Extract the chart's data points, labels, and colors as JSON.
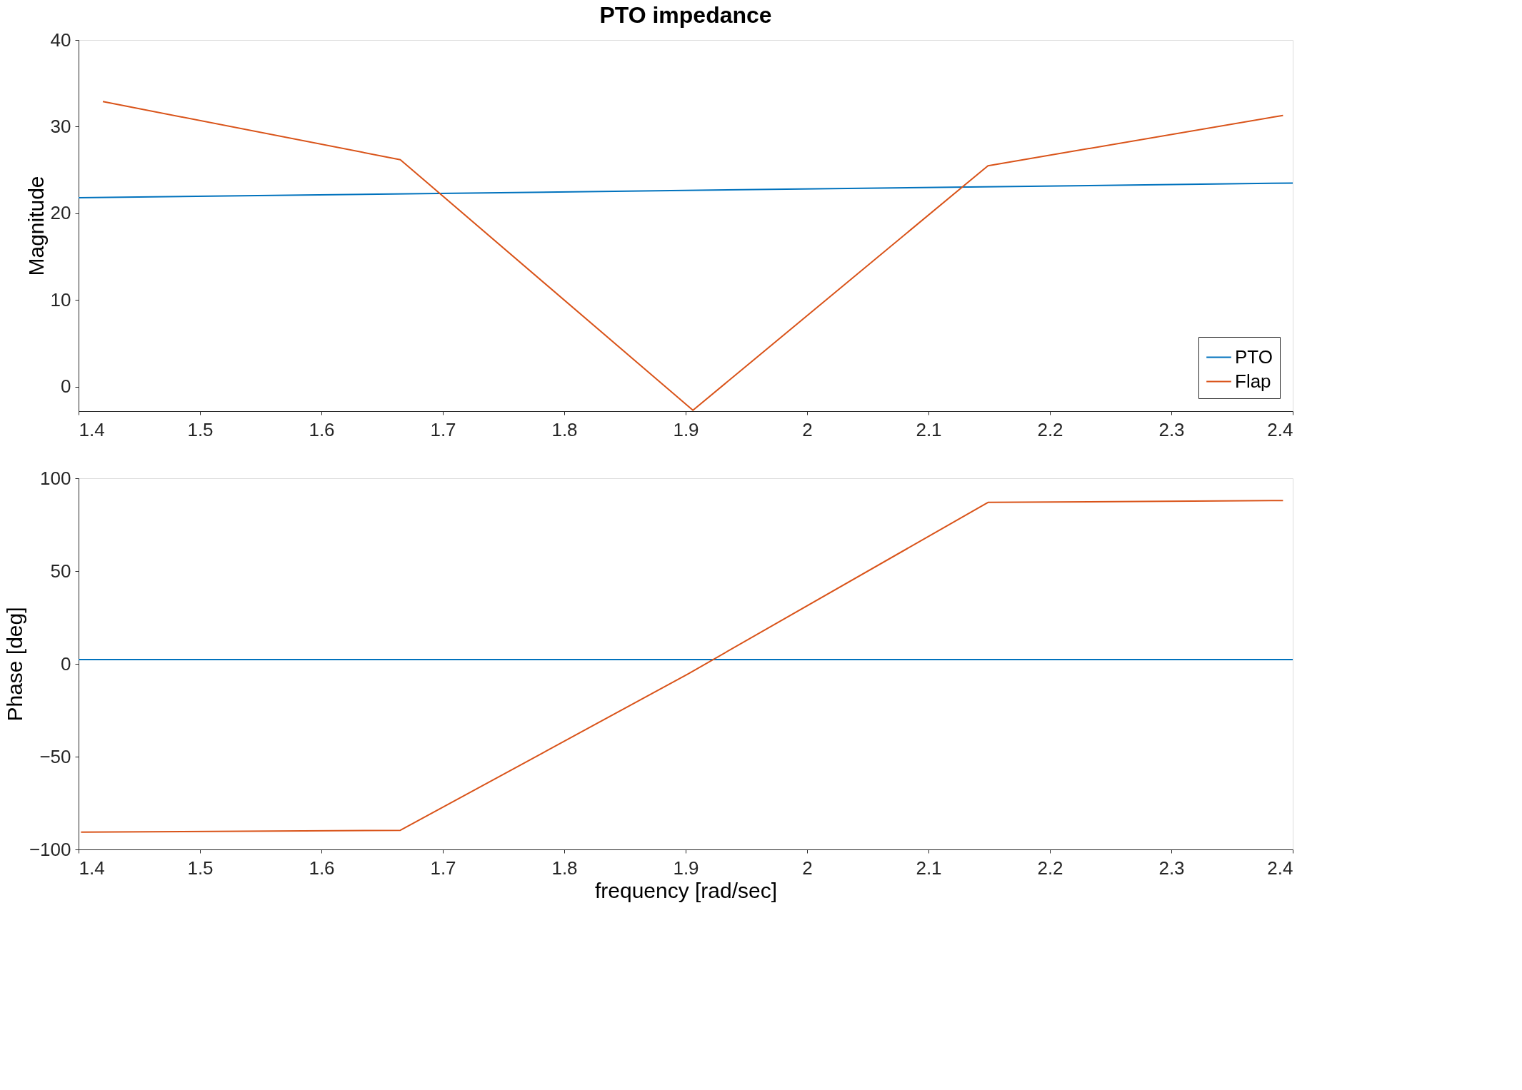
{
  "chart_data": [
    {
      "type": "line",
      "title": "PTO impedance",
      "ylabel": "Magnitude",
      "xlim": [
        1.4,
        2.4
      ],
      "xticks": [
        1.4,
        1.5,
        1.6,
        1.7,
        1.8,
        1.9,
        2,
        2.1,
        2.2,
        2.3,
        2.4
      ],
      "ylim": [
        -2.8,
        40
      ],
      "yticks": [
        0,
        10,
        20,
        30,
        40
      ],
      "grid": false,
      "legend": "bottom right",
      "line_style": "solid",
      "series": [
        {
          "name": "PTO",
          "color": "#0072bd",
          "x": [
            1.4,
            2.4
          ],
          "values": [
            21.8,
            23.5
          ]
        },
        {
          "name": "Flap",
          "color": "#d95319",
          "x": [
            1.42,
            1.665,
            1.906,
            2.149,
            2.392
          ],
          "values": [
            32.9,
            26.2,
            -2.7,
            25.5,
            31.3
          ]
        }
      ]
    },
    {
      "type": "line",
      "ylabel": "Phase [deg]",
      "xlabel": "frequency [rad/sec]",
      "xlim": [
        1.4,
        2.4
      ],
      "xticks": [
        1.4,
        1.5,
        1.6,
        1.7,
        1.8,
        1.9,
        2,
        2.1,
        2.2,
        2.3,
        2.4
      ],
      "ylim": [
        -100,
        100
      ],
      "yticks": [
        -100,
        -50,
        0,
        50,
        100
      ],
      "grid": false,
      "line_style": "solid",
      "series": [
        {
          "color": "#0072bd",
          "x": [
            1.4,
            2.4
          ],
          "values": [
            2.3,
            2.3
          ]
        },
        {
          "color": "#d95319",
          "x": [
            1.402,
            1.665,
            1.902,
            2.149,
            2.392
          ],
          "values": [
            -90.7,
            -89.7,
            -5.4,
            87,
            88
          ]
        }
      ]
    }
  ]
}
